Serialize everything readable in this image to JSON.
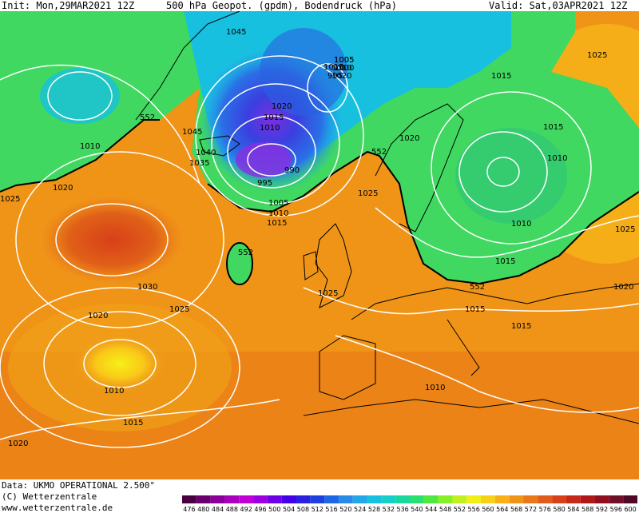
{
  "header": {
    "init_text": "Init: Mon,29MAR2021 12Z",
    "title": "500 hPa Geopot. (gpdm), Bodendruck (hPa)",
    "valid_text": "Valid: Sat,03APR2021 12Z"
  },
  "footer": {
    "data_source": "Data: UKMO OPERATIONAL 2.500°",
    "copyright": "(C) Wetterzentrale",
    "website": "www.wetterzentrale.de"
  },
  "legend": {
    "values": [
      "476",
      "480",
      "484",
      "488",
      "492",
      "496",
      "500",
      "504",
      "508",
      "512",
      "516",
      "520",
      "524",
      "528",
      "532",
      "536",
      "540",
      "544",
      "548",
      "552",
      "556",
      "560",
      "564",
      "568",
      "572",
      "576",
      "580",
      "584",
      "588",
      "592",
      "596",
      "600"
    ],
    "colors": [
      "#4a0040",
      "#6a0070",
      "#8a0098",
      "#a800bb",
      "#c000d6",
      "#9b00e0",
      "#6e00e6",
      "#4400e8",
      "#2a20e0",
      "#1e40e0",
      "#1f66e6",
      "#2a8ae8",
      "#20a8e8",
      "#18c0e0",
      "#14d0c8",
      "#18d8a0",
      "#28e070",
      "#50e840",
      "#88f028",
      "#c0f020",
      "#f0f018",
      "#f8d018",
      "#f8b018",
      "#f09418",
      "#e87818",
      "#e05c18",
      "#d84018",
      "#c82818",
      "#b01818",
      "#901020",
      "#701028",
      "#500828"
    ]
  },
  "map_labels": {
    "isobars": [
      "1045",
      "1045",
      "1040",
      "1035",
      "1005",
      "1010",
      "1015",
      "1020",
      "1005",
      "995",
      "1000",
      "1020",
      "1015",
      "1010",
      "990",
      "995",
      "1005",
      "1010",
      "1015",
      "1025",
      "1020",
      "1015",
      "1010",
      "1015",
      "1010",
      "1025",
      "1030",
      "1025",
      "1020",
      "1010",
      "1015",
      "1020",
      "1020",
      "1025",
      "1010",
      "1015",
      "1015",
      "1020",
      "1015",
      "1025",
      "1010",
      "1025"
    ],
    "contours_552": [
      "552",
      "552",
      "552",
      "552"
    ]
  }
}
